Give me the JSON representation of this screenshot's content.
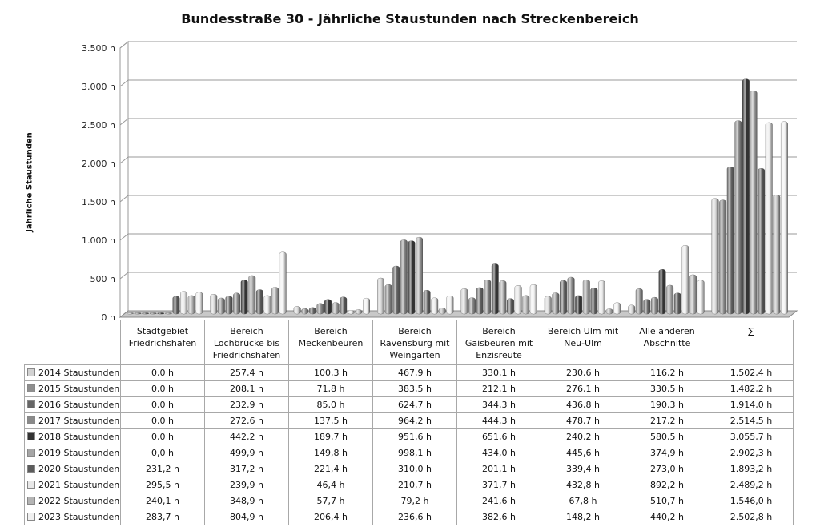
{
  "chart_data": {
    "type": "bar",
    "title": "Bundesstraße 30 - Jährliche Staustunden nach Streckenbereich",
    "ylabel": "Jährliche Staustunden",
    "xlabel": "",
    "ylim": [
      0,
      3500
    ],
    "yticks": [
      "0 h",
      "500 h",
      "1.000 h",
      "1.500 h",
      "2.000 h",
      "2.500 h",
      "3.000 h",
      "3.500 h"
    ],
    "grid": true,
    "legend": "table-left",
    "categories": [
      "Stadtgebiet Friedrichshafen",
      "Bereich Lochbrücke bis Friedrichshafen",
      "Bereich Meckenbeuren",
      "Bereich Ravensburg mit Weingarten",
      "Bereich Gaisbeuren mit Enzisreute",
      "Bereich Ulm mit Neu-Ulm",
      "Alle anderen Abschnitte",
      "∑"
    ],
    "series": [
      {
        "name": "2014 Staustunden",
        "color": "#d2d2d2",
        "values": [
          0.0,
          257.4,
          100.3,
          467.9,
          330.1,
          230.6,
          116.2,
          1502.4
        ],
        "labels": [
          "0,0 h",
          "257,4 h",
          "100,3 h",
          "467,9 h",
          "330,1 h",
          "230,6 h",
          "116,2 h",
          "1.502,4 h"
        ]
      },
      {
        "name": "2015 Staustunden",
        "color": "#8e8e8e",
        "values": [
          0.0,
          208.1,
          71.8,
          383.5,
          212.1,
          276.1,
          330.5,
          1482.2
        ],
        "labels": [
          "0,0 h",
          "208,1 h",
          "71,8 h",
          "383,5 h",
          "212,1 h",
          "276,1 h",
          "330,5 h",
          "1.482,2 h"
        ]
      },
      {
        "name": "2016 Staustunden",
        "color": "#666666",
        "values": [
          0.0,
          232.9,
          85.0,
          624.7,
          344.3,
          436.8,
          190.3,
          1914.0
        ],
        "labels": [
          "0,0 h",
          "232,9 h",
          "85,0 h",
          "624,7 h",
          "344,3 h",
          "436,8 h",
          "190,3 h",
          "1.914,0 h"
        ]
      },
      {
        "name": "2017 Staustunden",
        "color": "#8a8a8a",
        "values": [
          0.0,
          272.6,
          137.5,
          964.2,
          444.3,
          478.7,
          217.2,
          2514.5
        ],
        "labels": [
          "0,0 h",
          "272,6 h",
          "137,5 h",
          "964,2 h",
          "444,3 h",
          "478,7 h",
          "217,2 h",
          "2.514,5 h"
        ]
      },
      {
        "name": "2018 Staustunden",
        "color": "#333333",
        "values": [
          0.0,
          442.2,
          189.7,
          951.6,
          651.6,
          240.2,
          580.5,
          3055.7
        ],
        "labels": [
          "0,0 h",
          "442,2 h",
          "189,7 h",
          "951,6 h",
          "651,6 h",
          "240,2 h",
          "580,5 h",
          "3.055,7 h"
        ]
      },
      {
        "name": "2019 Staustunden",
        "color": "#a6a6a6",
        "values": [
          0.0,
          499.9,
          149.8,
          998.1,
          434.0,
          445.6,
          374.9,
          2902.3
        ],
        "labels": [
          "0,0 h",
          "499,9 h",
          "149,8 h",
          "998,1 h",
          "434,0 h",
          "445,6 h",
          "374,9 h",
          "2.902,3 h"
        ]
      },
      {
        "name": "2020 Staustunden",
        "color": "#5c5c5c",
        "values": [
          231.2,
          317.2,
          221.4,
          310.0,
          201.1,
          339.4,
          273.0,
          1893.2
        ],
        "labels": [
          "231,2 h",
          "317,2 h",
          "221,4 h",
          "310,0 h",
          "201,1 h",
          "339,4 h",
          "273,0 h",
          "1.893,2 h"
        ]
      },
      {
        "name": "2021 Staustunden",
        "color": "#e8e8e8",
        "values": [
          295.5,
          239.9,
          46.4,
          210.7,
          371.7,
          432.8,
          892.2,
          2489.2
        ],
        "labels": [
          "295,5 h",
          "239,9 h",
          "46,4 h",
          "210,7 h",
          "371,7 h",
          "432,8 h",
          "892,2 h",
          "2.489,2 h"
        ]
      },
      {
        "name": "2022 Staustunden",
        "color": "#b4b4b4",
        "values": [
          240.1,
          348.9,
          57.7,
          79.2,
          241.6,
          67.8,
          510.7,
          1546.0
        ],
        "labels": [
          "240,1 h",
          "348,9 h",
          "57,7 h",
          "79,2 h",
          "241,6 h",
          "67,8 h",
          "510,7 h",
          "1.546,0 h"
        ]
      },
      {
        "name": "2023 Staustunden",
        "color": "#f0f0f0",
        "values": [
          283.7,
          804.9,
          206.4,
          236.6,
          382.6,
          148.2,
          440.2,
          2502.8
        ],
        "labels": [
          "283,7 h",
          "804,9 h",
          "206,4 h",
          "236,6 h",
          "382,6 h",
          "148,2 h",
          "440,2 h",
          "2.502,8 h"
        ]
      }
    ]
  }
}
